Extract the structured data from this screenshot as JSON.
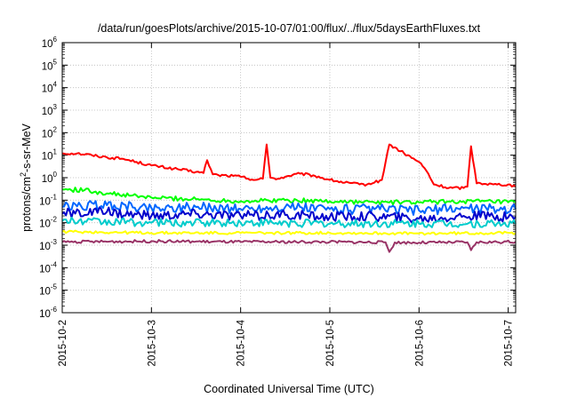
{
  "chart_data": {
    "type": "line",
    "title": "/data/run/goesPlots/archive/2015-10-07/01:00/flux/../flux/5daysEarthFluxes.txt",
    "xlabel": "Coordinated Universal Time (UTC)",
    "ylabel": "protons/cm2-s-sr-MeV",
    "ylabel_parts": {
      "pre": "protons/cm",
      "sup": "2",
      "post": "-s-sr-MeV"
    },
    "y_scale": "log",
    "ylim": [
      1e-06,
      1000000.0
    ],
    "y_ticks": [
      {
        "exp": "-6"
      },
      {
        "exp": "-5"
      },
      {
        "exp": "-4"
      },
      {
        "exp": "-3"
      },
      {
        "exp": "-2"
      },
      {
        "exp": "-1"
      },
      {
        "exp": "0"
      },
      {
        "exp": "1"
      },
      {
        "exp": "2"
      },
      {
        "exp": "3"
      },
      {
        "exp": "4"
      },
      {
        "exp": "5"
      },
      {
        "exp": "6"
      }
    ],
    "xlim": [
      "2015-10-02",
      "2015-10-07T02:00"
    ],
    "x_ticks": [
      "2015-10-2",
      "2015-10-3",
      "2015-10-4",
      "2015-10-5",
      "2015-10-6",
      "2015-10-7"
    ],
    "grid": true,
    "legend": "none",
    "series": [
      {
        "color": "#ff0000",
        "points": [
          [
            "2015-10-02T00:00",
            12
          ],
          [
            "2015-10-02T04:00",
            12
          ],
          [
            "2015-10-02T08:00",
            10
          ],
          [
            "2015-10-02T12:00",
            8
          ],
          [
            "2015-10-02T16:00",
            7
          ],
          [
            "2015-10-02T20:00",
            5
          ],
          [
            "2015-10-03T00:00",
            3.5
          ],
          [
            "2015-10-03T06:00",
            2.5
          ],
          [
            "2015-10-03T12:00",
            1.8
          ],
          [
            "2015-10-03T18:00",
            1.3
          ],
          [
            "2015-10-03T22:00",
            1.2
          ],
          [
            "2015-10-04T00:00",
            1.1
          ],
          [
            "2015-10-04T04:00",
            0.8
          ],
          [
            "2015-10-04T06:00",
            0.9
          ],
          [
            "2015-10-04T08:00",
            1
          ],
          [
            "2015-10-04T10:00",
            0.9
          ],
          [
            "2015-10-04T12:00",
            1.1
          ],
          [
            "2015-10-04T16:00",
            1.5
          ],
          [
            "2015-10-04T20:00",
            1.2
          ],
          [
            "2015-10-05T00:00",
            0.8
          ],
          [
            "2015-10-05T04:00",
            0.6
          ],
          [
            "2015-10-05T08:00",
            0.5
          ],
          [
            "2015-10-05T10:00",
            0.5
          ],
          [
            "2015-10-05T12:00",
            0.6
          ],
          [
            "2015-10-05T14:00",
            0.8
          ],
          [
            "2015-10-05T16:00",
            30
          ],
          [
            "2015-10-05T20:00",
            12
          ],
          [
            "2015-10-06T00:00",
            5
          ],
          [
            "2015-10-06T02:00",
            2
          ],
          [
            "2015-10-06T04:00",
            0.5
          ],
          [
            "2015-10-06T08:00",
            0.35
          ],
          [
            "2015-10-06T12:00",
            0.35
          ],
          [
            "2015-10-06T16:00",
            0.6
          ],
          [
            "2015-10-06T20:00",
            0.5
          ],
          [
            "2015-10-07T00:00",
            0.5
          ],
          [
            "2015-10-07T02:00",
            0.4
          ]
        ],
        "spikes": [
          [
            "2015-10-03T15:00",
            6
          ],
          [
            "2015-10-04T07:00",
            30
          ],
          [
            "2015-10-06T14:00",
            25
          ]
        ]
      },
      {
        "color": "#00ff00",
        "points": [
          [
            "2015-10-02T00:00",
            0.3
          ],
          [
            "2015-10-02T06:00",
            0.28
          ],
          [
            "2015-10-02T12:00",
            0.2
          ],
          [
            "2015-10-02T18:00",
            0.16
          ],
          [
            "2015-10-03T00:00",
            0.13
          ],
          [
            "2015-10-03T12:00",
            0.11
          ],
          [
            "2015-10-04T00:00",
            0.09
          ],
          [
            "2015-10-04T12:00",
            0.1
          ],
          [
            "2015-10-05T00:00",
            0.09
          ],
          [
            "2015-10-05T12:00",
            0.08
          ],
          [
            "2015-10-06T00:00",
            0.08
          ],
          [
            "2015-10-06T12:00",
            0.09
          ],
          [
            "2015-10-07T02:00",
            0.08
          ]
        ]
      },
      {
        "color": "#0066ff",
        "points": [
          [
            "2015-10-02T00:00",
            0.05
          ],
          [
            "2015-10-02T12:00",
            0.06
          ],
          [
            "2015-10-03T00:00",
            0.045
          ],
          [
            "2015-10-03T12:00",
            0.05
          ],
          [
            "2015-10-04T00:00",
            0.04
          ],
          [
            "2015-10-04T12:00",
            0.05
          ],
          [
            "2015-10-05T00:00",
            0.04
          ],
          [
            "2015-10-05T12:00",
            0.04
          ],
          [
            "2015-10-06T00:00",
            0.035
          ],
          [
            "2015-10-06T12:00",
            0.045
          ],
          [
            "2015-10-07T02:00",
            0.04
          ]
        ]
      },
      {
        "color": "#0000cc",
        "points": [
          [
            "2015-10-02T00:00",
            0.025
          ],
          [
            "2015-10-02T12:00",
            0.03
          ],
          [
            "2015-10-03T00:00",
            0.02
          ],
          [
            "2015-10-03T12:00",
            0.025
          ],
          [
            "2015-10-04T00:00",
            0.02
          ],
          [
            "2015-10-04T12:00",
            0.022
          ],
          [
            "2015-10-05T00:00",
            0.018
          ],
          [
            "2015-10-05T12:00",
            0.02
          ],
          [
            "2015-10-06T00:00",
            0.015
          ],
          [
            "2015-10-06T12:00",
            0.02
          ],
          [
            "2015-10-07T02:00",
            0.018
          ]
        ]
      },
      {
        "color": "#00cccc",
        "points": [
          [
            "2015-10-02T00:00",
            0.012
          ],
          [
            "2015-10-03T00:00",
            0.01
          ],
          [
            "2015-10-04T00:00",
            0.01
          ],
          [
            "2015-10-05T00:00",
            0.009
          ],
          [
            "2015-10-06T00:00",
            0.009
          ],
          [
            "2015-10-07T02:00",
            0.009
          ]
        ]
      },
      {
        "color": "#ffff00",
        "points": [
          [
            "2015-10-02T00:00",
            0.004
          ],
          [
            "2015-10-03T00:00",
            0.0035
          ],
          [
            "2015-10-04T00:00",
            0.0035
          ],
          [
            "2015-10-05T00:00",
            0.0035
          ],
          [
            "2015-10-06T00:00",
            0.0033
          ],
          [
            "2015-10-07T02:00",
            0.0035
          ]
        ]
      },
      {
        "color": "#993366",
        "points": [
          [
            "2015-10-02T00:00",
            0.0014
          ],
          [
            "2015-10-03T00:00",
            0.0015
          ],
          [
            "2015-10-04T00:00",
            0.0014
          ],
          [
            "2015-10-05T00:00",
            0.0014
          ],
          [
            "2015-10-06T00:00",
            0.0013
          ],
          [
            "2015-10-07T02:00",
            0.0014
          ]
        ],
        "dips": [
          [
            "2015-10-05T16:00",
            0.0005
          ],
          [
            "2015-10-06T14:00",
            0.0006
          ]
        ]
      }
    ]
  }
}
